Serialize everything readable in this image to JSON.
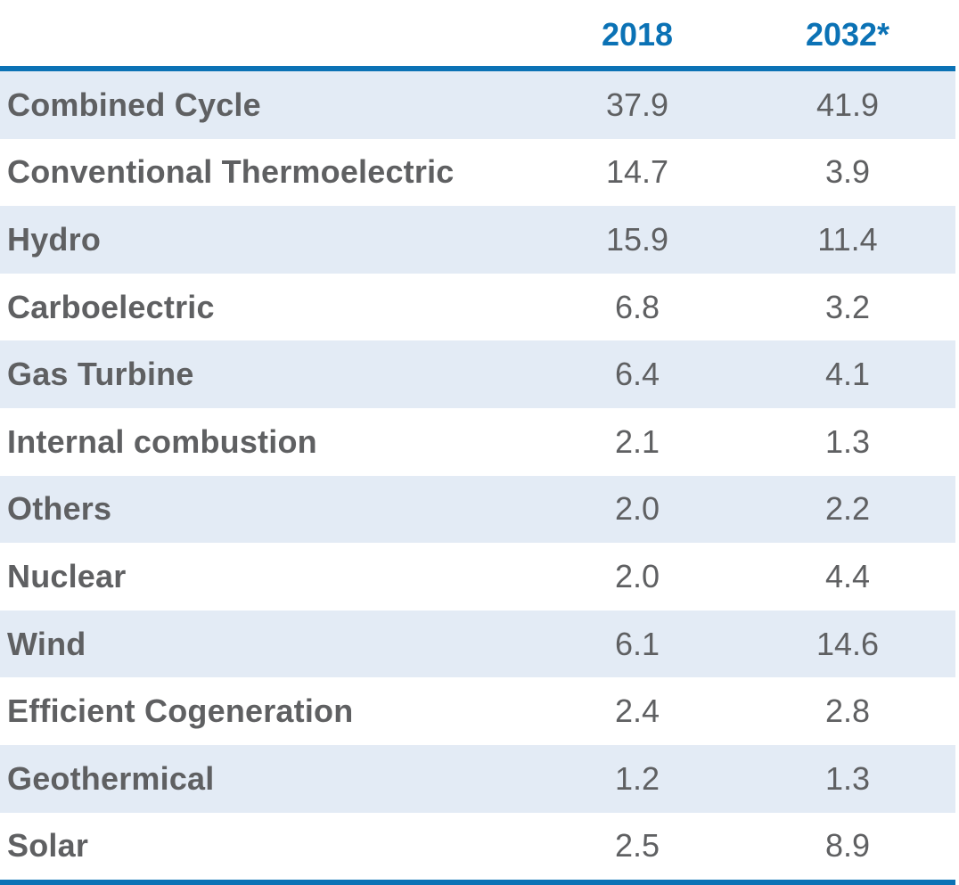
{
  "table": {
    "header": {
      "label": "",
      "col1": "2018",
      "col2": "2032*"
    },
    "rows": [
      {
        "label": "Combined Cycle",
        "v2018": "37.9",
        "v2032": "41.9"
      },
      {
        "label": "Conventional Thermoelectric",
        "v2018": "14.7",
        "v2032": "3.9"
      },
      {
        "label": "Hydro",
        "v2018": "15.9",
        "v2032": "11.4"
      },
      {
        "label": "Carboelectric",
        "v2018": "6.8",
        "v2032": "3.2"
      },
      {
        "label": "Gas Turbine",
        "v2018": "6.4",
        "v2032": "4.1"
      },
      {
        "label": "Internal combustion",
        "v2018": "2.1",
        "v2032": "1.3"
      },
      {
        "label": "Others",
        "v2018": "2.0",
        "v2032": "2.2"
      },
      {
        "label": "Nuclear",
        "v2018": "2.0",
        "v2032": "4.4"
      },
      {
        "label": "Wind",
        "v2018": "6.1",
        "v2032": "14.6"
      },
      {
        "label": "Efficient Cogeneration",
        "v2018": "2.4",
        "v2032": "2.8"
      },
      {
        "label": "Geothermical",
        "v2018": "1.2",
        "v2032": "1.3"
      },
      {
        "label": "Solar",
        "v2018": "2.5",
        "v2032": "8.9"
      }
    ]
  },
  "colors": {
    "accent": "#0b72b5",
    "row_shade": "#e3ebf5",
    "text": "#5f6062"
  }
}
